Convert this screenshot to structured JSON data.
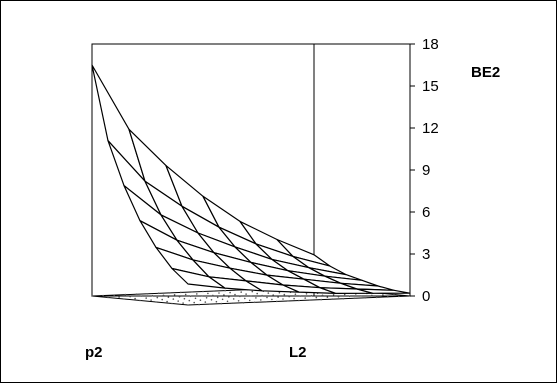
{
  "chart_data": {
    "type": "surface",
    "zlabel": "BE2",
    "xlabel": "L2",
    "ylabel": "p2",
    "zlim": [
      0,
      18
    ],
    "z_ticks": [
      "0",
      "3",
      "6",
      "9",
      "12",
      "15",
      "18"
    ],
    "grid": false,
    "floor_pattern": "dotted",
    "rows": 6,
    "cols": 6,
    "z": [
      [
        16.5,
        11.8,
        9.1,
        6.8,
        4.9,
        3.5,
        2.3
      ],
      [
        11.2,
        8.2,
        6.3,
        4.7,
        3.4,
        2.4,
        1.6
      ],
      [
        8.1,
        5.9,
        4.5,
        3.4,
        2.4,
        1.7,
        1.1
      ],
      [
        5.7,
        4.2,
        3.2,
        2.4,
        1.7,
        1.2,
        0.8
      ],
      [
        3.9,
        2.9,
        2.2,
        1.6,
        1.2,
        0.8,
        0.5
      ],
      [
        2.5,
        1.8,
        1.4,
        1.0,
        0.7,
        0.5,
        0.3
      ],
      [
        1.5,
        1.1,
        0.8,
        0.6,
        0.4,
        0.3,
        0.2
      ]
    ]
  }
}
